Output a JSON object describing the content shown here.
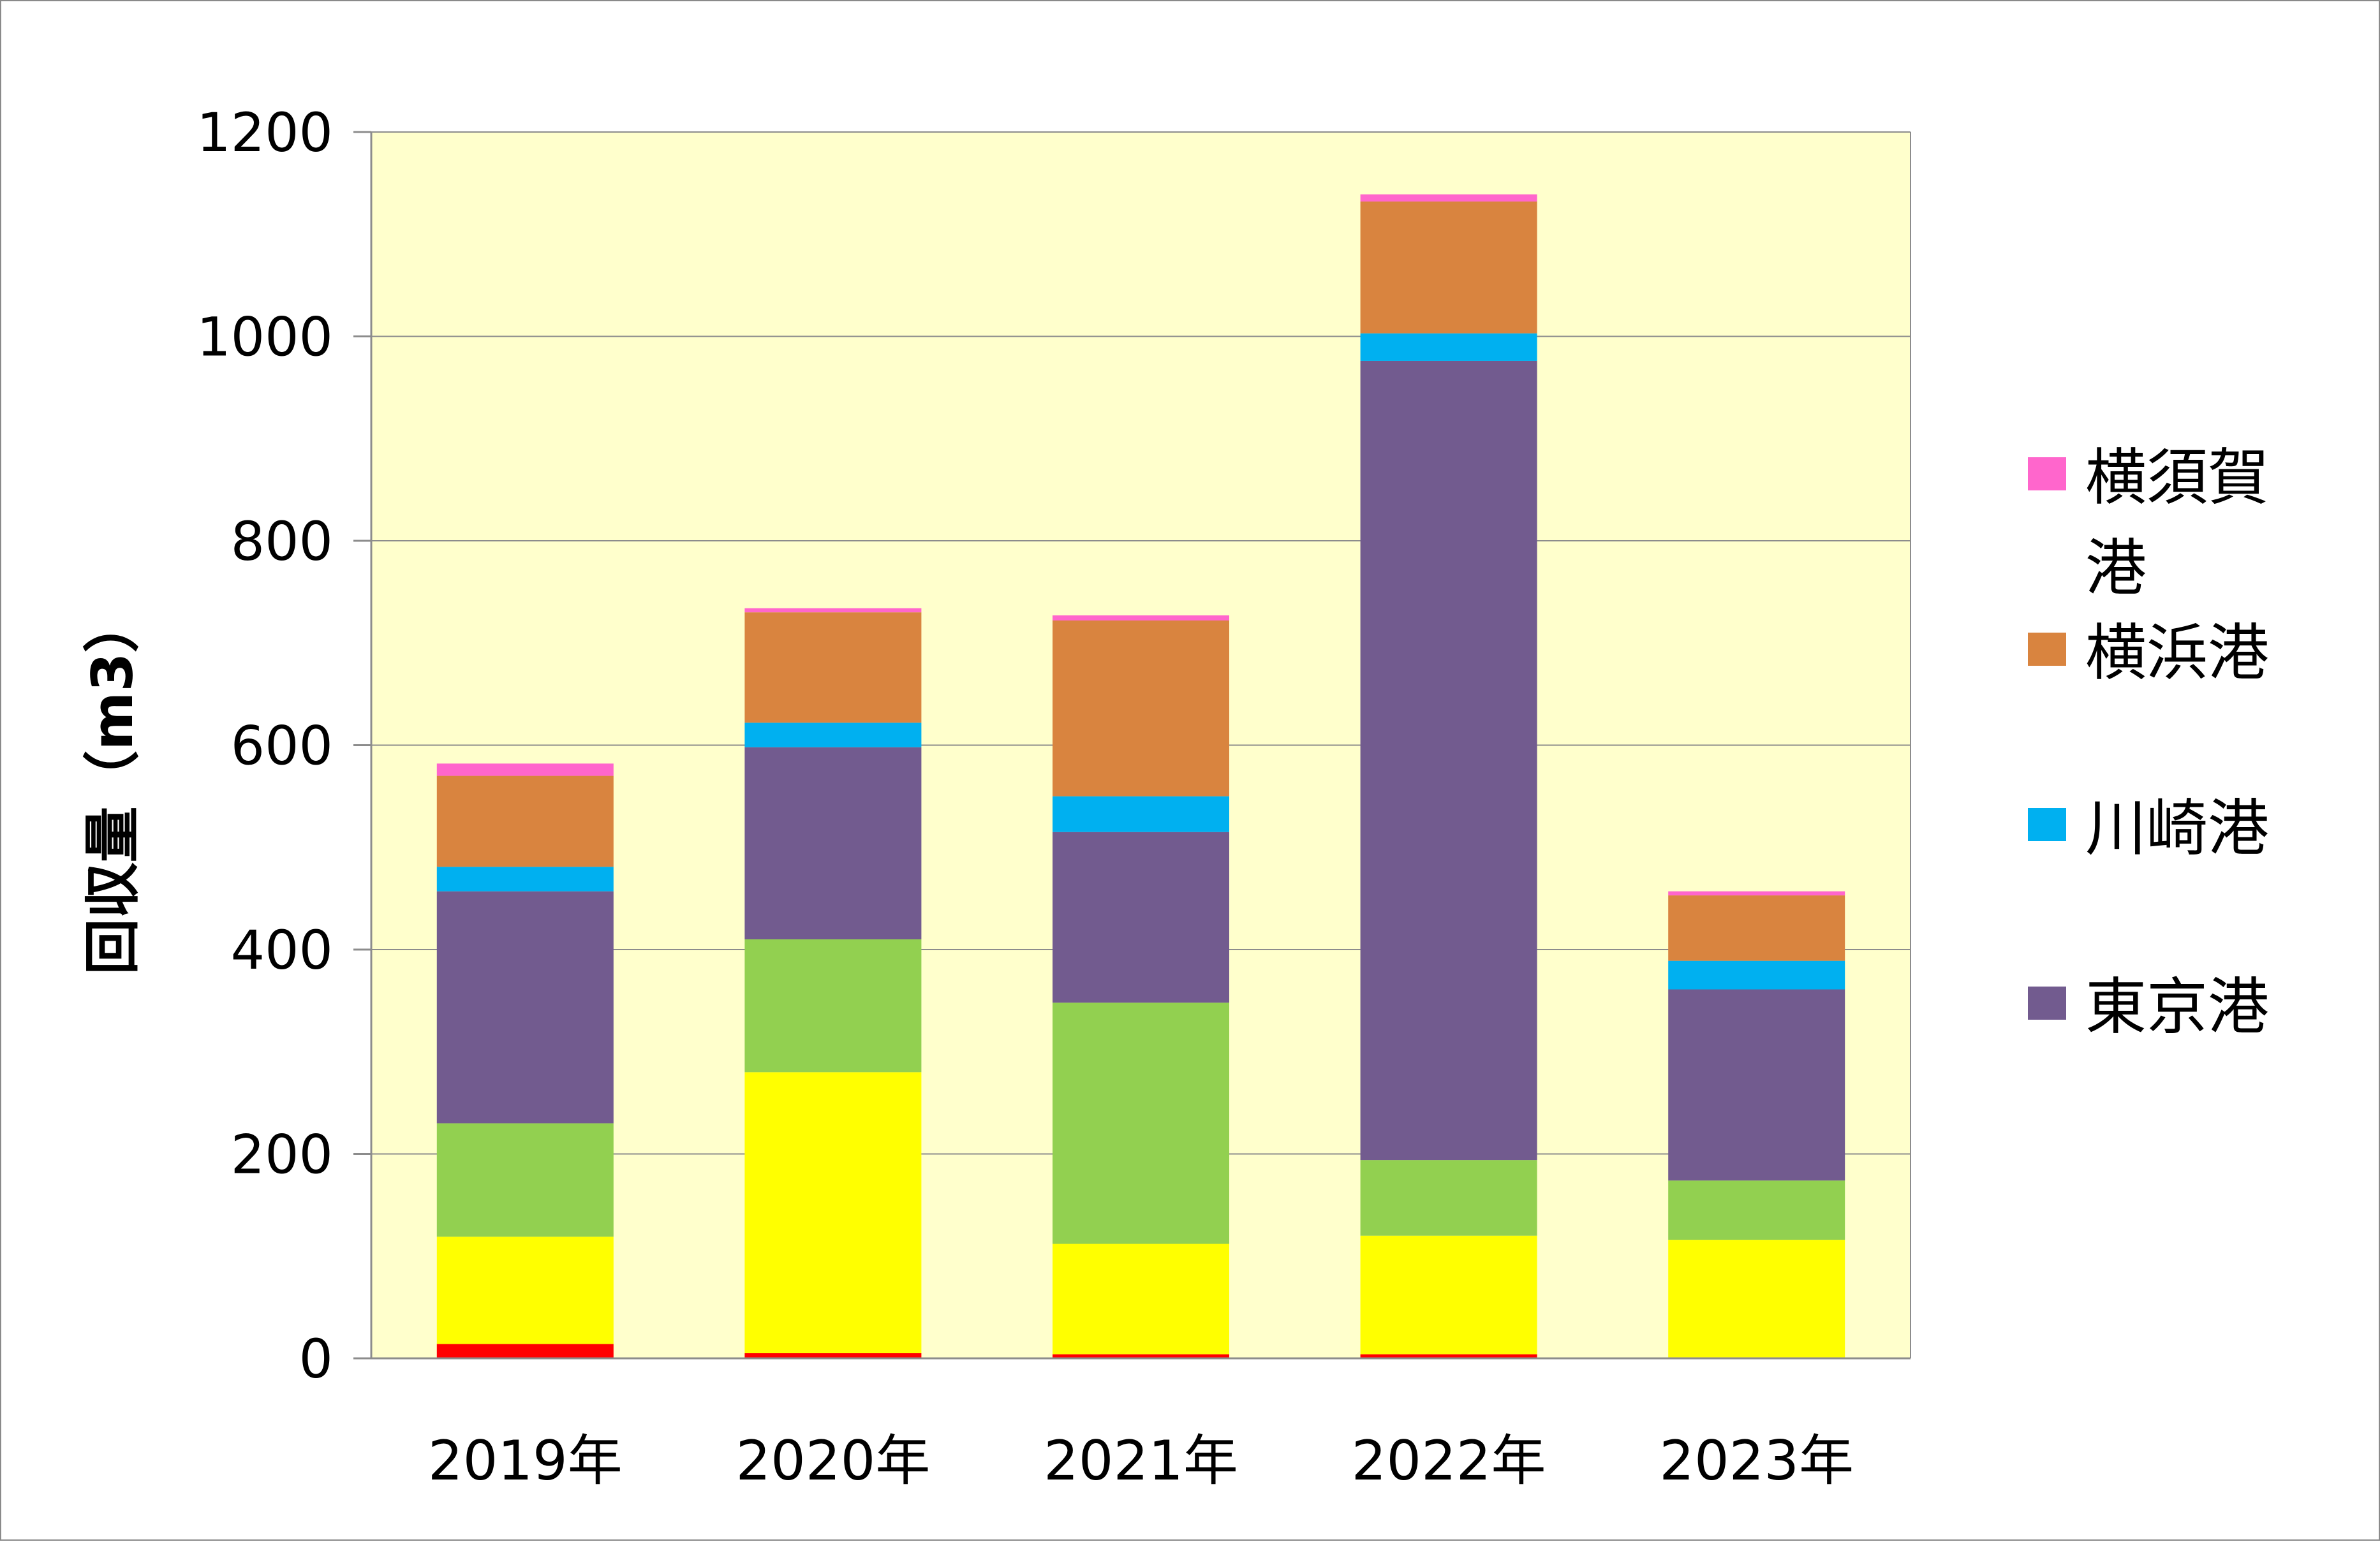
{
  "chart_data": {
    "type": "bar",
    "stacked": true,
    "title": "",
    "xlabel": "",
    "ylabel": "回収量（m3）",
    "ylim": [
      0,
      1200
    ],
    "yticks": [
      0,
      200,
      400,
      600,
      800,
      1000,
      1200
    ],
    "categories": [
      "2019年",
      "2020年",
      "2021年",
      "2022年",
      "2023年"
    ],
    "grid": true,
    "plot_background": "#FFFFCC",
    "legend_position": "right",
    "series": [
      {
        "color": "#FF0000",
        "values": [
          14,
          5,
          4,
          4,
          1
        ]
      },
      {
        "color": "#FFFF00",
        "values": [
          105,
          275,
          108,
          116,
          115
        ]
      },
      {
        "color": "#92D050",
        "values": [
          111,
          130,
          236,
          74,
          58
        ]
      },
      {
        "name": "東京港",
        "color": "#725B8F",
        "values": [
          227,
          188,
          167,
          782,
          187
        ]
      },
      {
        "name": "川崎港",
        "color": "#00B0F0",
        "values": [
          24,
          24,
          35,
          27,
          28
        ]
      },
      {
        "name": "横浜港",
        "color": "#D9843F",
        "values": [
          89,
          108,
          172,
          129,
          64
        ]
      },
      {
        "name": "横須賀港",
        "color": "#FF66CC",
        "values": [
          12,
          4,
          5,
          7,
          4
        ]
      }
    ]
  }
}
